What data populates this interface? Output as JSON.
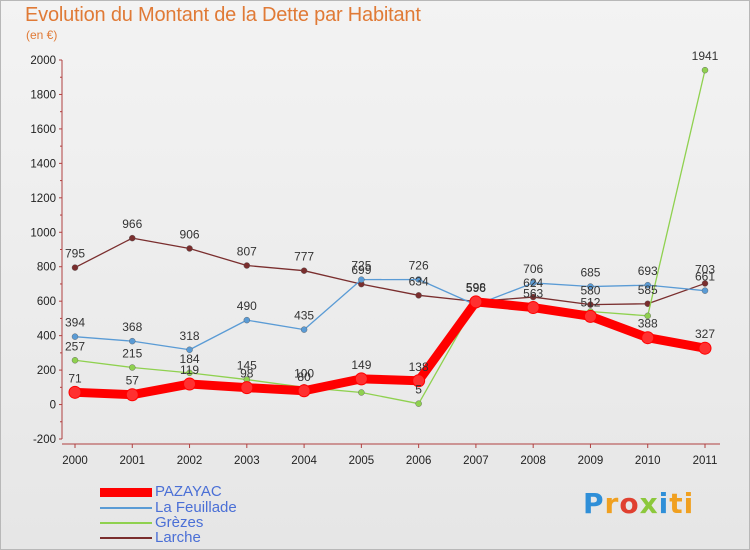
{
  "header": {
    "title": "Evolution du Montant de la Dette par Habitant",
    "subtitle": "(en €)"
  },
  "brand": {
    "logo_text": "Proxiti"
  },
  "chart_data": {
    "type": "line",
    "x": [
      "2000",
      "2001",
      "2002",
      "2003",
      "2004",
      "2005",
      "2006",
      "2007",
      "2008",
      "2009",
      "2010",
      "2011"
    ],
    "ylim": [
      -200,
      2000
    ],
    "yticks": [
      -200,
      0,
      200,
      400,
      600,
      800,
      1000,
      1200,
      1400,
      1600,
      1800,
      2000
    ],
    "grid": false,
    "legend_position": "bottom-left",
    "series": [
      {
        "name": "PAZAYAC",
        "color": "#ff0000",
        "width": 9,
        "marker": 6,
        "values": [
          71,
          57,
          119,
          98,
          80,
          149,
          138,
          596,
          563,
          512,
          388,
          327
        ],
        "labels": [
          "71",
          "57",
          "119",
          "98",
          "80",
          "149",
          "138",
          "596",
          "563",
          "512",
          "388",
          "327"
        ]
      },
      {
        "name": "La Feuillade",
        "color": "#5a9bd5",
        "width": 1.3,
        "marker": 3,
        "values": [
          394,
          368,
          318,
          490,
          435,
          725,
          726,
          578,
          706,
          685,
          693,
          661
        ],
        "labels": [
          "394",
          "368",
          "318",
          "490",
          "435",
          "725",
          "726",
          "",
          "706",
          "685",
          "693",
          "661"
        ]
      },
      {
        "name": "Grèzes",
        "color": "#8fd14f",
        "width": 1.3,
        "marker": 3,
        "values": [
          257,
          215,
          184,
          145,
          100,
          70,
          5,
          590,
          560,
          540,
          515,
          1941
        ],
        "labels": [
          "257",
          "215",
          "184",
          "145",
          "100",
          "",
          "5",
          "",
          "",
          "",
          "",
          "1941"
        ]
      },
      {
        "name": "Larche",
        "color": "#7a2e2e",
        "width": 1.3,
        "marker": 3,
        "values": [
          795,
          966,
          906,
          807,
          777,
          699,
          634,
          598,
          624,
          580,
          585,
          703
        ],
        "labels": [
          "795",
          "966",
          "906",
          "807",
          "777",
          "699",
          "634",
          "598",
          "624",
          "580",
          "585",
          "703"
        ]
      }
    ]
  }
}
